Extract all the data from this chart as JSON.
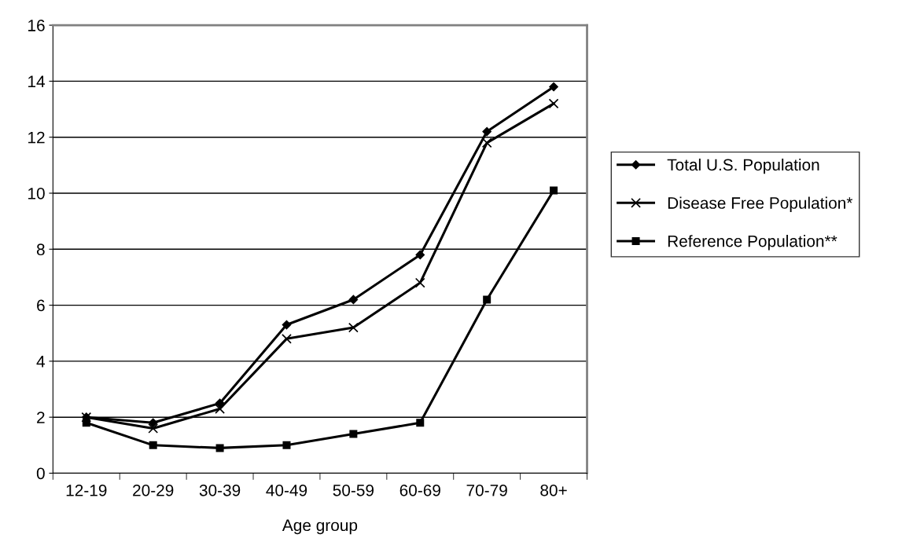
{
  "chart_data": {
    "type": "line",
    "xlabel": "Age group",
    "categories": [
      "12-19",
      "20-29",
      "30-39",
      "40-49",
      "50-59",
      "60-69",
      "70-79",
      "80+"
    ],
    "series": [
      {
        "name": "Total U.S. Population",
        "color": "#000000",
        "marker": "diamond",
        "values": [
          2.0,
          1.8,
          2.5,
          5.3,
          6.2,
          7.8,
          12.2,
          13.8
        ]
      },
      {
        "name": "Disease Free Population*",
        "color": "#000000",
        "marker": "cross",
        "values": [
          2.0,
          1.6,
          2.3,
          4.8,
          5.2,
          6.8,
          11.8,
          13.2
        ]
      },
      {
        "name": "Reference Population**",
        "color": "#000000",
        "marker": "square",
        "values": [
          1.8,
          1.0,
          0.9,
          1.0,
          1.4,
          1.8,
          6.2,
          10.1
        ]
      }
    ],
    "ylim": [
      0,
      16
    ],
    "yticks": [
      0,
      2,
      4,
      6,
      8,
      10,
      12,
      14,
      16
    ],
    "grid": "y",
    "legend": "right",
    "line_style": "solid"
  }
}
